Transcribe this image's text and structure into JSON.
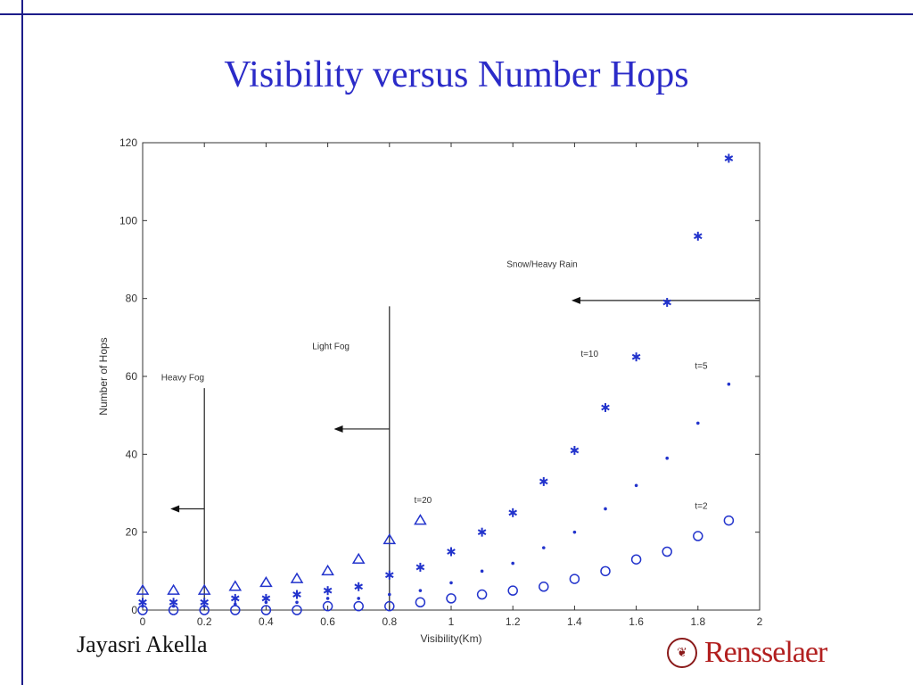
{
  "slide": {
    "title": "Visibility versus Number Hops",
    "author": "Jayasri Akella",
    "logo_text": "Rensselaer",
    "logo_seal_glyph": "❦"
  },
  "colors": {
    "title": "#2b2bc8",
    "rule": "#1d1d8a",
    "marker": "#2233cc",
    "logo": "#b21f1f"
  },
  "chart_data": {
    "type": "scatter",
    "xlabel": "Visibility(Km)",
    "ylabel": "Number of Hops",
    "xlim": [
      0,
      2
    ],
    "ylim": [
      0,
      120
    ],
    "xticks": [
      0,
      0.2,
      0.4,
      0.6,
      0.8,
      1,
      1.2,
      1.4,
      1.6,
      1.8,
      2
    ],
    "xtick_labels": [
      "0",
      "0.2",
      "0.4",
      "0.6",
      "0.8",
      "1",
      "1.2",
      "1.4",
      "1.6",
      "1.8",
      "2"
    ],
    "yticks": [
      0,
      20,
      40,
      60,
      80,
      100,
      120
    ],
    "ytick_labels": [
      "0",
      "20",
      "40",
      "60",
      "80",
      "100",
      "120"
    ],
    "grid": false,
    "series": [
      {
        "name": "t=20",
        "marker": "triangle",
        "x": [
          0,
          0.1,
          0.2,
          0.3,
          0.4,
          0.5,
          0.6,
          0.7,
          0.8,
          0.9
        ],
        "y": [
          5,
          5,
          5,
          6,
          7,
          8,
          10,
          13,
          18,
          23
        ]
      },
      {
        "name": "t=10",
        "marker": "asterisk",
        "x": [
          0,
          0.1,
          0.2,
          0.3,
          0.4,
          0.5,
          0.6,
          0.7,
          0.8,
          0.9,
          1.0,
          1.1,
          1.2,
          1.3,
          1.4,
          1.5,
          1.6,
          1.7,
          1.8,
          1.9
        ],
        "y": [
          2,
          2,
          2,
          3,
          3,
          4,
          5,
          6,
          9,
          11,
          15,
          20,
          25,
          33,
          41,
          52,
          65,
          79,
          96,
          116
        ]
      },
      {
        "name": "t=5",
        "marker": "dot",
        "x": [
          0,
          0.1,
          0.2,
          0.3,
          0.4,
          0.5,
          0.6,
          0.7,
          0.8,
          0.9,
          1.0,
          1.1,
          1.2,
          1.3,
          1.4,
          1.5,
          1.6,
          1.7,
          1.8,
          1.9
        ],
        "y": [
          1,
          1,
          1,
          1.5,
          2,
          2,
          3,
          3,
          4,
          5,
          7,
          10,
          12,
          16,
          20,
          26,
          32,
          39,
          48,
          58
        ]
      },
      {
        "name": "t=2",
        "marker": "circle",
        "x": [
          0,
          0.1,
          0.2,
          0.3,
          0.4,
          0.5,
          0.6,
          0.7,
          0.8,
          0.9,
          1.0,
          1.1,
          1.2,
          1.3,
          1.4,
          1.5,
          1.6,
          1.7,
          1.8,
          1.9
        ],
        "y": [
          0,
          0,
          0,
          0,
          0,
          0,
          1,
          1,
          1,
          2,
          3,
          4,
          5,
          6,
          8,
          10,
          13,
          15,
          19,
          23
        ]
      }
    ],
    "annotations": [
      {
        "text": "Heavy Fog",
        "x": 0.06,
        "y": 59
      },
      {
        "text": "Light Fog",
        "x": 0.55,
        "y": 67
      },
      {
        "text": "Snow/Heavy Rain",
        "x": 1.18,
        "y": 88
      },
      {
        "text": "t=20",
        "x": 0.88,
        "y": 27.5
      },
      {
        "text": "t=10",
        "x": 1.42,
        "y": 65
      },
      {
        "text": "t=5",
        "x": 1.79,
        "y": 62
      },
      {
        "text": "t=2",
        "x": 1.79,
        "y": 26
      }
    ],
    "threshold_lines": [
      {
        "x": 0.2,
        "y_top": 57,
        "arrow_y": 26,
        "arrow_to_x": 0.09
      },
      {
        "x": 0.8,
        "y_top": 78,
        "arrow_y": 46.5,
        "arrow_to_x": 0.62
      },
      {
        "y": 79.5,
        "x_from": 2.0,
        "arrow_to_x": 1.39
      }
    ]
  }
}
